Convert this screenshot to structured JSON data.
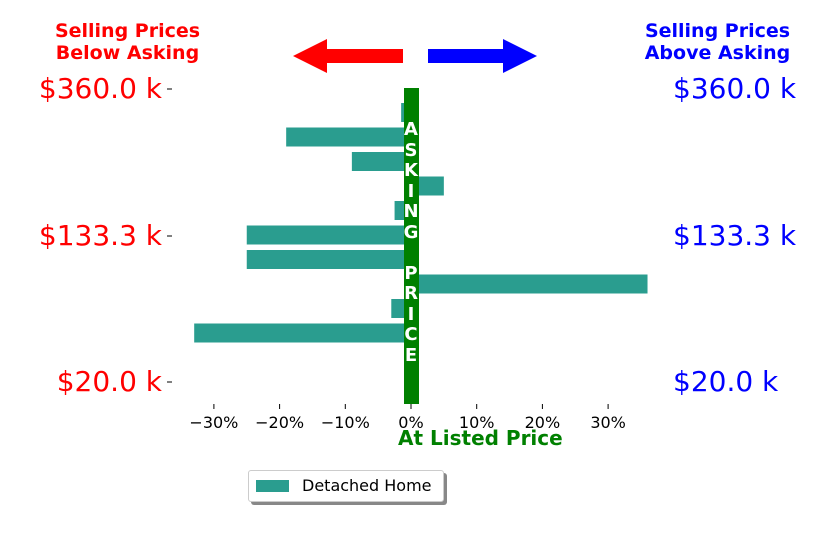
{
  "chart_data": {
    "type": "bar",
    "orientation": "horizontal",
    "header_left": [
      "Selling Prices",
      "Below Asking"
    ],
    "header_right": [
      "Selling Prices",
      "Above Asking"
    ],
    "price_labels": [
      "$360.0 k",
      "$133.3 k",
      "$20.0 k"
    ],
    "xlabel": "At Listed Price",
    "asking_label": [
      "A",
      "S",
      "K",
      "I",
      "N",
      "G",
      " ",
      "P",
      "R",
      "I",
      "C",
      "E"
    ],
    "x_ticks": [
      "−30%",
      "−20%",
      "−10%",
      "0%",
      "10%",
      "20%",
      "30%"
    ],
    "x_tick_values": [
      -30,
      -20,
      -10,
      0,
      10,
      20,
      30
    ],
    "xlim": [
      -35,
      37
    ],
    "y_tick_positions": [
      360,
      133.3,
      20
    ],
    "series": [
      {
        "name": "Detached Home",
        "color": "#2a9d8f",
        "values": [
          -1.5,
          -19,
          -9,
          5,
          -2.5,
          -25,
          -25,
          36,
          -3,
          -33
        ]
      }
    ],
    "legend": "bottom-center",
    "colors": {
      "bar": "#2a9d8f",
      "asking_line": "#008000",
      "below": "#ff0000",
      "above": "#0000ff"
    }
  }
}
